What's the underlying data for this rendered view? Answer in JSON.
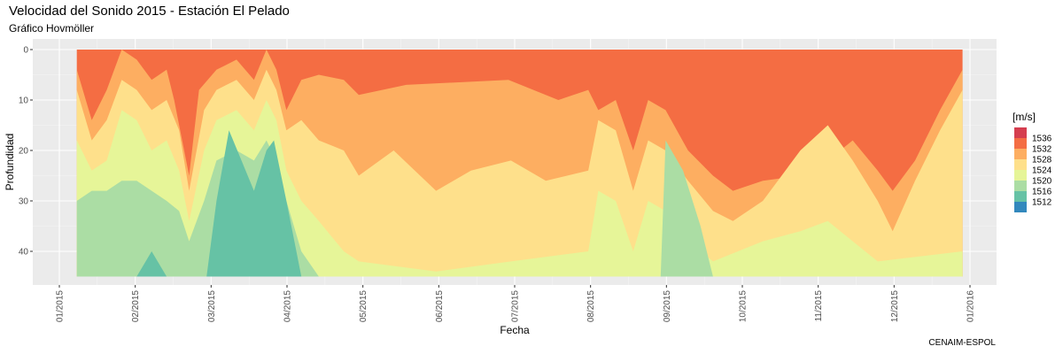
{
  "title": "Velocidad del Sonido 2015 - Estación El Pelado",
  "subtitle": "Gráfico Hovmöller",
  "caption": "CENAIM-ESPOL",
  "chart_data": {
    "type": "heatmap",
    "xlabel": "Fecha",
    "ylabel": "Profundidad",
    "x_ticks": [
      "01/2015",
      "02/2015",
      "03/2015",
      "04/2015",
      "05/2015",
      "06/2015",
      "07/2015",
      "08/2015",
      "09/2015",
      "10/2015",
      "11/2015",
      "12/2015",
      "01/2016"
    ],
    "xlim": [
      "2015-01-01",
      "2016-01-01"
    ],
    "y_ticks": [
      0,
      10,
      20,
      30,
      40
    ],
    "ylim": [
      0,
      45
    ],
    "y_reversed": true,
    "grid": true,
    "data_x_range": [
      "2015-01-08",
      "2015-12-29"
    ],
    "legend": {
      "title": "[m/s]",
      "position": "right",
      "levels": [
        {
          "label": "1536",
          "color": "#D53E4F"
        },
        {
          "label": "1532",
          "color": "#F46D43"
        },
        {
          "label": "1528",
          "color": "#FDAE61"
        },
        {
          "label": "1524",
          "color": "#FEE08B"
        },
        {
          "label": "1520",
          "color": "#E6F598"
        },
        {
          "label": "1516",
          "color": "#ABDDA4"
        },
        {
          "label": "1512",
          "color": "#66C2A5"
        },
        {
          "label": "",
          "color": "#3288BD"
        }
      ]
    },
    "contour_bands": [
      {
        "level": "1532",
        "color": "#F46D43",
        "boundary": [
          [
            "2015-01-08",
            0
          ],
          [
            "2015-02-15",
            0
          ],
          [
            "2015-03-21",
            0
          ],
          [
            "2015-07-01",
            0
          ],
          [
            "2015-08-01",
            0
          ],
          [
            "2015-08-02",
            0
          ],
          [
            "2015-12-31",
            0
          ]
        ]
      },
      {
        "level": "1528",
        "color": "#FDAE61",
        "boundary": [
          [
            "2015-01-08",
            4
          ],
          [
            "2015-01-14",
            14
          ],
          [
            "2015-01-20",
            8
          ],
          [
            "2015-01-26",
            0
          ],
          [
            "2015-02-01",
            2
          ],
          [
            "2015-02-07",
            6
          ],
          [
            "2015-02-13",
            4
          ],
          [
            "2015-02-16",
            10
          ],
          [
            "2015-02-22",
            25
          ],
          [
            "2015-02-26",
            8
          ],
          [
            "2015-03-05",
            4
          ],
          [
            "2015-03-13",
            2
          ],
          [
            "2015-03-20",
            6
          ],
          [
            "2015-03-25",
            0
          ],
          [
            "2015-03-29",
            4
          ],
          [
            "2015-04-02",
            12
          ],
          [
            "2015-04-08",
            6
          ],
          [
            "2015-04-15",
            5
          ],
          [
            "2015-04-25",
            6
          ],
          [
            "2015-05-01",
            9
          ],
          [
            "2015-05-20",
            7
          ],
          [
            "2015-06-30",
            6
          ],
          [
            "2015-07-20",
            10
          ],
          [
            "2015-08-01",
            8
          ],
          [
            "2015-08-05",
            12
          ],
          [
            "2015-08-12",
            10
          ],
          [
            "2015-08-19",
            20
          ],
          [
            "2015-08-25",
            10
          ],
          [
            "2015-09-01",
            12
          ],
          [
            "2015-09-10",
            20
          ],
          [
            "2015-09-20",
            25
          ],
          [
            "2015-09-28",
            28
          ],
          [
            "2015-10-10",
            26
          ],
          [
            "2015-10-25",
            25
          ],
          [
            "2015-11-05",
            22
          ],
          [
            "2015-11-15",
            18
          ],
          [
            "2015-11-25",
            24
          ],
          [
            "2015-12-01",
            28
          ],
          [
            "2015-12-10",
            22
          ],
          [
            "2015-12-20",
            12
          ],
          [
            "2015-12-29",
            4
          ]
        ]
      },
      {
        "level": "1524",
        "color": "#FEE08B",
        "boundary": [
          [
            "2015-01-08",
            8
          ],
          [
            "2015-01-14",
            18
          ],
          [
            "2015-01-20",
            14
          ],
          [
            "2015-01-26",
            6
          ],
          [
            "2015-02-01",
            8
          ],
          [
            "2015-02-07",
            12
          ],
          [
            "2015-02-13",
            10
          ],
          [
            "2015-02-18",
            16
          ],
          [
            "2015-02-22",
            28
          ],
          [
            "2015-02-28",
            12
          ],
          [
            "2015-03-05",
            8
          ],
          [
            "2015-03-13",
            6
          ],
          [
            "2015-03-20",
            10
          ],
          [
            "2015-03-25",
            4
          ],
          [
            "2015-03-29",
            8
          ],
          [
            "2015-04-02",
            16
          ],
          [
            "2015-04-08",
            14
          ],
          [
            "2015-04-15",
            18
          ],
          [
            "2015-04-25",
            20
          ],
          [
            "2015-05-01",
            25
          ],
          [
            "2015-05-15",
            20
          ],
          [
            "2015-06-01",
            28
          ],
          [
            "2015-06-15",
            24
          ],
          [
            "2015-07-01",
            22
          ],
          [
            "2015-07-15",
            26
          ],
          [
            "2015-08-01",
            24
          ],
          [
            "2015-08-05",
            14
          ],
          [
            "2015-08-12",
            16
          ],
          [
            "2015-08-19",
            28
          ],
          [
            "2015-08-25",
            18
          ],
          [
            "2015-09-01",
            20
          ],
          [
            "2015-09-10",
            26
          ],
          [
            "2015-09-20",
            32
          ],
          [
            "2015-09-28",
            34
          ],
          [
            "2015-10-10",
            30
          ],
          [
            "2015-10-25",
            20
          ],
          [
            "2015-11-05",
            15
          ],
          [
            "2015-11-15",
            22
          ],
          [
            "2015-11-25",
            30
          ],
          [
            "2015-12-01",
            36
          ],
          [
            "2015-12-10",
            26
          ],
          [
            "2015-12-20",
            16
          ],
          [
            "2015-12-29",
            8
          ]
        ]
      },
      {
        "level": "1520",
        "color": "#E6F598",
        "boundary": [
          [
            "2015-01-08",
            18
          ],
          [
            "2015-01-14",
            24
          ],
          [
            "2015-01-20",
            22
          ],
          [
            "2015-01-26",
            12
          ],
          [
            "2015-02-01",
            14
          ],
          [
            "2015-02-07",
            20
          ],
          [
            "2015-02-13",
            18
          ],
          [
            "2015-02-18",
            24
          ],
          [
            "2015-02-22",
            34
          ],
          [
            "2015-02-28",
            20
          ],
          [
            "2015-03-05",
            14
          ],
          [
            "2015-03-13",
            12
          ],
          [
            "2015-03-20",
            16
          ],
          [
            "2015-03-25",
            10
          ],
          [
            "2015-03-29",
            14
          ],
          [
            "2015-04-02",
            24
          ],
          [
            "2015-04-08",
            30
          ],
          [
            "2015-04-15",
            34
          ],
          [
            "2015-04-25",
            40
          ],
          [
            "2015-05-01",
            42
          ],
          [
            "2015-06-01",
            44
          ],
          [
            "2015-07-01",
            42
          ],
          [
            "2015-08-01",
            40
          ],
          [
            "2015-08-05",
            28
          ],
          [
            "2015-08-12",
            30
          ],
          [
            "2015-08-19",
            40
          ],
          [
            "2015-08-25",
            30
          ],
          [
            "2015-09-01",
            32
          ],
          [
            "2015-09-10",
            38
          ],
          [
            "2015-09-20",
            42
          ],
          [
            "2015-10-10",
            38
          ],
          [
            "2015-10-25",
            36
          ],
          [
            "2015-11-05",
            34
          ],
          [
            "2015-11-15",
            38
          ],
          [
            "2015-11-25",
            42
          ],
          [
            "2015-12-29",
            40
          ]
        ]
      },
      {
        "level": "1516",
        "color": "#ABDDA4",
        "boundary": [
          [
            "2015-01-08",
            30
          ],
          [
            "2015-01-14",
            28
          ],
          [
            "2015-01-20",
            28
          ],
          [
            "2015-01-26",
            26
          ],
          [
            "2015-02-01",
            26
          ],
          [
            "2015-02-07",
            28
          ],
          [
            "2015-02-13",
            30
          ],
          [
            "2015-02-18",
            32
          ],
          [
            "2015-02-22",
            38
          ],
          [
            "2015-02-28",
            30
          ],
          [
            "2015-03-05",
            22
          ],
          [
            "2015-03-13",
            20
          ],
          [
            "2015-03-20",
            22
          ],
          [
            "2015-03-25",
            18
          ],
          [
            "2015-03-29",
            22
          ],
          [
            "2015-04-02",
            30
          ],
          [
            "2015-04-08",
            40
          ],
          [
            "2015-04-15",
            45
          ],
          [
            "2015-08-30",
            45
          ],
          [
            "2015-09-01",
            18
          ],
          [
            "2015-09-08",
            24
          ],
          [
            "2015-09-15",
            35
          ],
          [
            "2015-09-20",
            45
          ],
          [
            "2015-12-29",
            45
          ]
        ]
      },
      {
        "level": "1512",
        "color": "#66C2A5",
        "boundary": [
          [
            "2015-01-08",
            45
          ],
          [
            "2015-02-01",
            45
          ],
          [
            "2015-02-07",
            40
          ],
          [
            "2015-02-13",
            45
          ],
          [
            "2015-03-01",
            45
          ],
          [
            "2015-03-05",
            30
          ],
          [
            "2015-03-10",
            16
          ],
          [
            "2015-03-15",
            22
          ],
          [
            "2015-03-20",
            28
          ],
          [
            "2015-03-25",
            20
          ],
          [
            "2015-03-28",
            18
          ],
          [
            "2015-04-02",
            30
          ],
          [
            "2015-04-08",
            45
          ],
          [
            "2015-12-29",
            45
          ]
        ]
      }
    ]
  }
}
